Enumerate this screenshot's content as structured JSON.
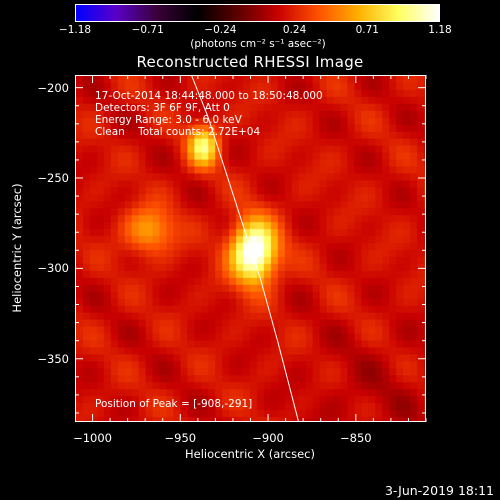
{
  "chart_data": {
    "type": "heatmap",
    "title": "Reconstructed RHESSI Image",
    "xlabel": "Heliocentric X (arcsec)",
    "ylabel": "Heliocentric Y (arcsec)",
    "xlim": [
      -1010,
      -810
    ],
    "ylim": [
      -385,
      -193
    ],
    "x_ticks": [
      -1000,
      -950,
      -900,
      -850
    ],
    "x_tick_labels": [
      "−1000",
      "−950",
      "−900",
      "−850"
    ],
    "y_ticks": [
      -200,
      -250,
      -300,
      -350
    ],
    "y_tick_labels": [
      "−200",
      "−250",
      "−300",
      "−350"
    ],
    "colorbar": {
      "min": -1.18,
      "max": 1.18,
      "tick_values": [
        -1.18,
        -0.71,
        -0.24,
        0.24,
        0.71,
        1.18
      ],
      "tick_labels": [
        "−1.18",
        "−0.71",
        "−0.24",
        "0.24",
        "0.71",
        "1.18"
      ],
      "unit_label": "(photons cm⁻² s⁻¹ asec⁻²)",
      "colormap": [
        "#0000ff",
        "#5a00c8",
        "#3a003a",
        "#000000",
        "#5a0000",
        "#c80000",
        "#ff5000",
        "#ffb000",
        "#ffff60",
        "#ffffff"
      ]
    },
    "sources": [
      {
        "x": -908,
        "y": -291,
        "peak": 1.18
      },
      {
        "x": -937,
        "y": -232,
        "peak": 0.75
      },
      {
        "x": -968,
        "y": -279,
        "peak": 0.45
      }
    ],
    "limb_line": [
      [
        -944,
        -193
      ],
      [
        -935,
        -215
      ],
      [
        -925,
        -245
      ],
      [
        -915,
        -275
      ],
      [
        -905,
        -305
      ],
      [
        -895,
        -340
      ],
      [
        -883,
        -385
      ]
    ],
    "info_lines": [
      "17-Oct-2014 18:44:48.000 to 18:50:48.000",
      "Detectors: 3F 6F 9F, Att 0",
      "Energy Range: 3.0 - 6.0 keV",
      "Clean    Total counts: 2.72E+04"
    ],
    "peak_label": "Position of Peak = [-908,-291]"
  },
  "footer": {
    "date": "3-Jun-2019 18:11"
  }
}
